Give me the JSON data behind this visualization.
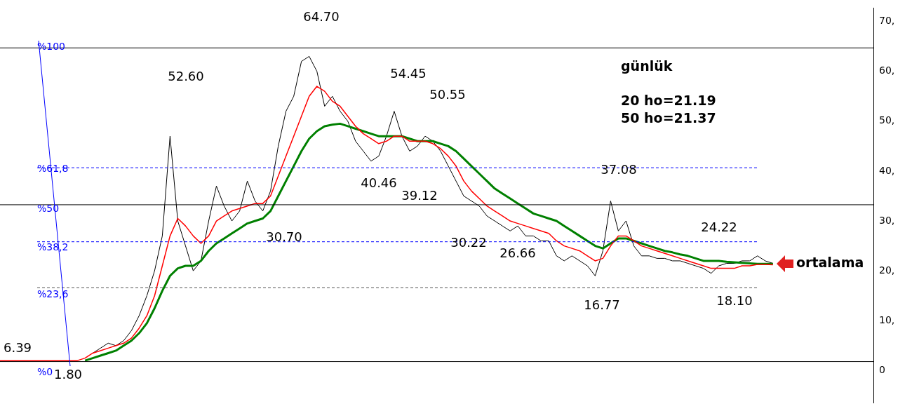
{
  "chart_data": {
    "type": "line",
    "categories": [
      null,
      null,
      null,
      null,
      null,
      null,
      null,
      null,
      null,
      null,
      null,
      null,
      null,
      null,
      null,
      null,
      null,
      null,
      null,
      null,
      null,
      null,
      null,
      null,
      null,
      null,
      null,
      null,
      null,
      null,
      null,
      null,
      null,
      null,
      null,
      null,
      null,
      null,
      null,
      null,
      null,
      null,
      null,
      null,
      null,
      null,
      null,
      null,
      null,
      null,
      null,
      null,
      null,
      null,
      null,
      null,
      null,
      null,
      null,
      null,
      null,
      null,
      null,
      null,
      null,
      null,
      null,
      null,
      null,
      null,
      null,
      null,
      null,
      null,
      null,
      null,
      null,
      null,
      null,
      null,
      null,
      null,
      null,
      null,
      null,
      null,
      null,
      null,
      null,
      null,
      null,
      null,
      null,
      null,
      null,
      null,
      null,
      null,
      null,
      null,
      null,
      null,
      null,
      null,
      null,
      null,
      null,
      null,
      null,
      null,
      null,
      null,
      null,
      null
    ],
    "series": [
      {
        "color": "#000000",
        "values": [
          null,
          null,
          null,
          null,
          null,
          null,
          null,
          null,
          null,
          null,
          null,
          null,
          3.5,
          4.5,
          5.5,
          5,
          6,
          8,
          11,
          15,
          20,
          27,
          47,
          30,
          25,
          20,
          22,
          30,
          37,
          33,
          30,
          32,
          38,
          34,
          32,
          36,
          45,
          52,
          55,
          62,
          63,
          60,
          53,
          55,
          52,
          50,
          46,
          44,
          42,
          43,
          47,
          52,
          47,
          44,
          45,
          47,
          46,
          44,
          41,
          38,
          35,
          34,
          33,
          31,
          30,
          29,
          28,
          29,
          27,
          27,
          26,
          26,
          23,
          22,
          23,
          22,
          21,
          19,
          24,
          34,
          28,
          30,
          25,
          23,
          23,
          22.5,
          22.5,
          22,
          22,
          21.5,
          21,
          20.5,
          19.5,
          21,
          21.5,
          21.5,
          22,
          22,
          23,
          22,
          21.5,
          null,
          null,
          null,
          null,
          null,
          null,
          null,
          null,
          null,
          null,
          null,
          null,
          null
        ]
      },
      {
        "color": "#ff0000",
        "values": [
          2,
          2,
          2,
          2,
          2,
          2,
          2,
          2,
          2,
          2,
          2,
          2.5,
          3.5,
          4,
          4.5,
          5,
          5.5,
          6.5,
          8.5,
          11,
          15,
          21,
          27,
          30.5,
          29,
          27,
          25.5,
          27,
          30,
          31,
          32,
          32.5,
          33,
          33.5,
          33.5,
          35,
          39,
          43,
          47,
          51,
          55,
          57,
          56,
          54,
          53,
          51,
          49,
          47.5,
          46.5,
          45.5,
          46,
          47,
          47,
          46,
          46,
          46,
          45.5,
          44.5,
          43,
          41,
          38,
          36,
          34.5,
          33,
          32,
          31,
          30,
          29.5,
          29,
          28.5,
          28,
          27.5,
          26,
          25,
          24.5,
          24,
          23,
          22,
          22.5,
          25,
          27,
          27,
          26,
          25,
          24.5,
          24,
          23.5,
          23,
          22.5,
          22,
          21.5,
          21,
          20.5,
          20.5,
          20.5,
          20.5,
          21,
          21,
          21.3,
          21.3,
          21.2,
          null,
          null,
          null,
          null,
          null,
          null,
          null,
          null,
          null,
          null,
          null,
          null,
          null
        ]
      },
      {
        "color": "#008000",
        "values": [
          null,
          null,
          null,
          null,
          null,
          null,
          null,
          null,
          null,
          null,
          null,
          2,
          2.5,
          3,
          3.5,
          4,
          5,
          6,
          7.5,
          9.5,
          12.5,
          16,
          19,
          20.5,
          21,
          21,
          22,
          24,
          25.5,
          26.5,
          27.5,
          28.5,
          29.5,
          30,
          30.5,
          32,
          35,
          38,
          41,
          44,
          46.5,
          48,
          49,
          49.3,
          49.5,
          49,
          48.5,
          48,
          47.5,
          47,
          47,
          47,
          47,
          46.5,
          46,
          46,
          46,
          45.5,
          45,
          44,
          42.5,
          41,
          39.5,
          38,
          36.5,
          35.5,
          34.5,
          33.5,
          32.5,
          31.5,
          31,
          30.5,
          30,
          29,
          28,
          27,
          26,
          25,
          24.5,
          25.5,
          26.5,
          26.5,
          26,
          25.5,
          25,
          24.5,
          24,
          23.7,
          23.3,
          23,
          22.5,
          22,
          22,
          22,
          21.8,
          21.7,
          21.6,
          21.5,
          21.4,
          21.4,
          21.4,
          null,
          null,
          null,
          null,
          null,
          null,
          null,
          null,
          null,
          null,
          null,
          null,
          null
        ]
      }
    ],
    "ylim": [
      -6.5,
      72.7
    ],
    "yticks": [
      0,
      {
        "value": 10,
        "label": "10,"
      },
      {
        "value": 20,
        "label": "20,"
      },
      {
        "value": 30,
        "label": "30,"
      },
      {
        "value": 40,
        "label": "40,"
      },
      {
        "value": 50,
        "label": "50,"
      },
      {
        "value": 60,
        "label": "60,"
      },
      {
        "value": 70,
        "label": "70,"
      }
    ],
    "ref_lines": [
      {
        "axis": "y",
        "value": 1.8,
        "color": "#000000",
        "line_style": "solid"
      },
      {
        "axis": "y",
        "value": 16.64,
        "color": "#555555",
        "line_style": "dashed"
      },
      {
        "axis": "y",
        "value": 25.83,
        "color": "#0000ff",
        "line_style": "dashed"
      },
      {
        "axis": "y",
        "value": 33.25,
        "color": "#000000",
        "line_style": "solid"
      },
      {
        "axis": "y",
        "value": 40.67,
        "color": "#0000ff",
        "line_style": "dashed"
      },
      {
        "axis": "y",
        "value": 64.7,
        "color": "#000000",
        "line_style": "solid"
      }
    ],
    "annotations": [
      "%0",
      "%23,6",
      "%38,2",
      "%50",
      "%61,8",
      "%100",
      "64.70",
      "52.60",
      "54.45",
      "50.55",
      "40.46",
      "39.12",
      "30.70",
      "30.22",
      "26.66",
      "37.08",
      "24.22",
      "16.77",
      "18.10",
      "6.39",
      "1.80",
      "günlük",
      "20 ho=21.19",
      "50 ho=21.37",
      "ortalama"
    ],
    "grid": false,
    "legend": false,
    "marker": "none",
    "line_style": "solid"
  }
}
